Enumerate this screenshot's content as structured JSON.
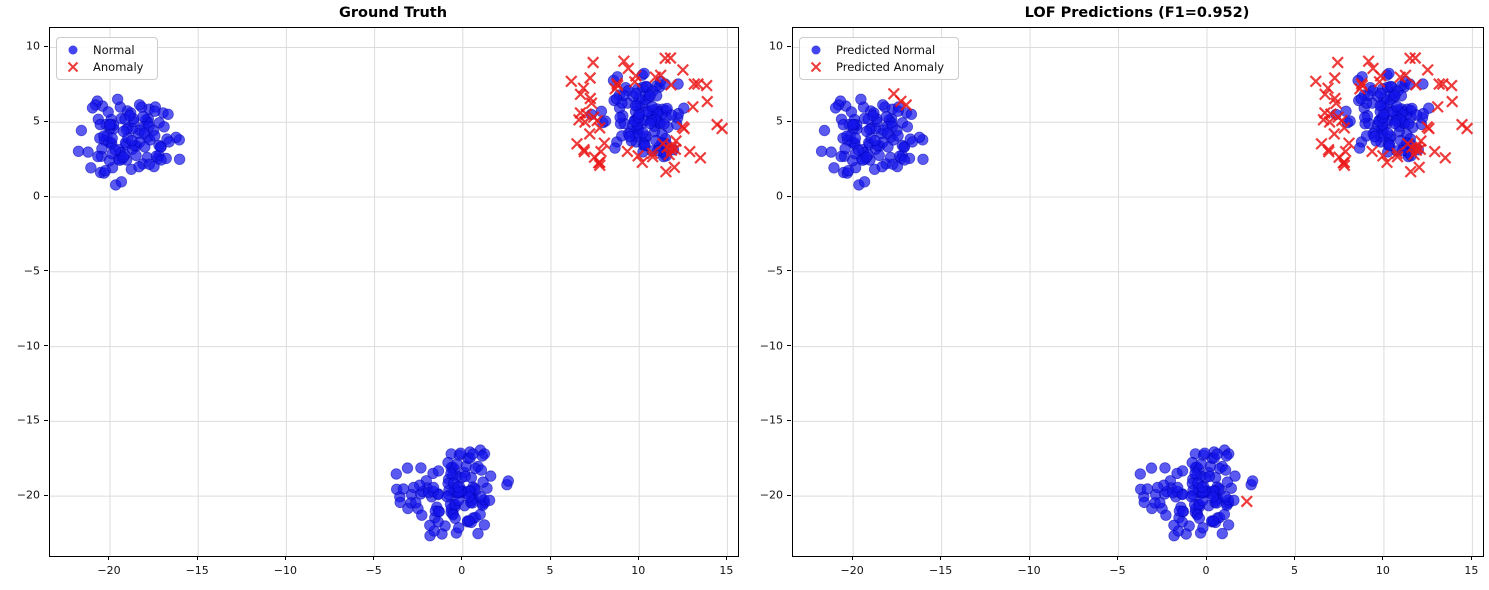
{
  "chart_data": {
    "type": "scatter",
    "panels": [
      {
        "id": "ground-truth",
        "title": "Ground Truth",
        "legend": [
          {
            "label": "Normal",
            "marker": "circle"
          },
          {
            "label": "Anomaly",
            "marker": "x"
          }
        ],
        "extra_anomaly_points": []
      },
      {
        "id": "lof-predictions",
        "title": "LOF Predictions (F1=0.952)",
        "legend": [
          {
            "label": "Predicted Normal",
            "marker": "circle"
          },
          {
            "label": "Predicted Anomaly",
            "marker": "x"
          }
        ],
        "extra_anomaly_points": [
          [
            -17.7,
            6.9
          ],
          [
            -17.3,
            6.4
          ],
          [
            -17.0,
            6.15
          ],
          [
            2.25,
            -20.35
          ]
        ]
      }
    ],
    "axes": {
      "xlim": [
        -23.4,
        15.6
      ],
      "ylim": [
        -24.0,
        11.3
      ],
      "xtick_values": [
        -20,
        -15,
        -10,
        -5,
        0,
        5,
        10,
        15
      ],
      "xtick_labels": [
        "−20",
        "−15",
        "−10",
        "−5",
        "0",
        "5",
        "10",
        "15"
      ],
      "ytick_values": [
        10,
        5,
        0,
        -5,
        -10,
        -15,
        -20
      ],
      "ytick_labels": [
        "10",
        "5",
        "0",
        "−5",
        "−10",
        "−15",
        "−20"
      ],
      "grid": true
    },
    "normal_clusters": [
      {
        "name": "upper-left-cluster",
        "center": [
          -18.9,
          3.9
        ],
        "std": 1.4,
        "max_radius": 3.3,
        "n": 110,
        "seed": 11
      },
      {
        "name": "upper-right-cluster",
        "center": [
          10.1,
          5.45
        ],
        "std": 1.35,
        "max_radius": 3.1,
        "n": 115,
        "seed": 22
      },
      {
        "name": "bottom-cluster",
        "center": [
          -0.55,
          -19.6
        ],
        "std": 1.55,
        "max_radius": 3.5,
        "n": 125,
        "seed": 33
      }
    ],
    "anomaly_ring": {
      "center": [
        10.15,
        5.5
      ],
      "inner_radius": 2.4,
      "outer_radius": 4.7,
      "n": 62,
      "seed": 44,
      "y_squash": 0.92
    },
    "styles": {
      "normal_color": "#1414eb",
      "normal_alpha": 0.7,
      "normal_edge_color": "#0000b4",
      "anomaly_color": "#eb1919",
      "anomaly_alpha": 0.85,
      "grid_color": "#dcdcdc",
      "axes_border_color": "#000000",
      "background": "#ffffff",
      "marker_radius_px": 5.3,
      "x_marker_half_px": 5.3,
      "x_marker_stroke_px": 2.2
    }
  }
}
